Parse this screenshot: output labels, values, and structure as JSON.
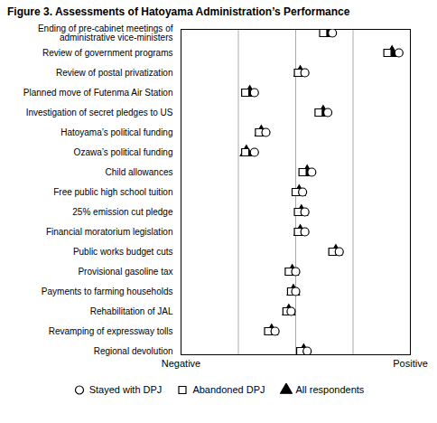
{
  "chart_data": {
    "type": "dot",
    "title": "Figure 3. Assessments of Hatoyama Administration’s Performance",
    "categories": [
      "Ending of pre-cabinet meetings of\nadministrative vice-ministers",
      "Review of government programs",
      "Review of postal privatization",
      "Planned move of Futenma Air Station",
      "Investigation of secret pledges to US",
      "Hatoyama’s political funding",
      "Ozawa’s political funding",
      "Child allowances",
      "Free public high school tuition",
      "25% emission cut pledge",
      "Financial moratorium legislation",
      "Public works budget cuts",
      "Provisional gasoline tax",
      "Payments to farming households",
      "Rehabilitation of JAL",
      "Revamping of expressway tolls",
      "Regional devolution"
    ],
    "series": [
      {
        "name": "Stayed with DPJ",
        "color": "#000000",
        "marker": "circle-open",
        "values": [
          6.6,
          9.5,
          5.4,
          3.2,
          6.4,
          3.7,
          3.2,
          5.7,
          5.3,
          5.4,
          5.4,
          6.9,
          5.0,
          5.0,
          4.8,
          4.1,
          5.5
        ]
      },
      {
        "name": "Abandoned DPJ",
        "color": "#000000",
        "marker": "square-open",
        "values": [
          6.2,
          9.0,
          5.1,
          2.8,
          6.0,
          3.4,
          2.8,
          5.3,
          5.0,
          5.1,
          5.1,
          6.6,
          4.7,
          4.8,
          4.6,
          3.8,
          5.2
        ]
      },
      {
        "name": "All respondents",
        "color": "#000000",
        "marker": "triangle",
        "values": [
          6.4,
          9.2,
          5.2,
          3.0,
          6.2,
          3.5,
          2.85,
          5.5,
          5.15,
          5.25,
          5.2,
          6.75,
          4.85,
          4.9,
          4.7,
          3.95,
          5.35
        ]
      }
    ],
    "xlim": [
      0,
      10
    ],
    "xticks": [
      2.5,
      5.0,
      7.5
    ],
    "grid": true,
    "tick_labels": "y",
    "annotations": [
      {
        "text": "Negative",
        "x": 0
      },
      {
        "text": "Positive",
        "x": 10
      }
    ],
    "legend": "bottom"
  }
}
